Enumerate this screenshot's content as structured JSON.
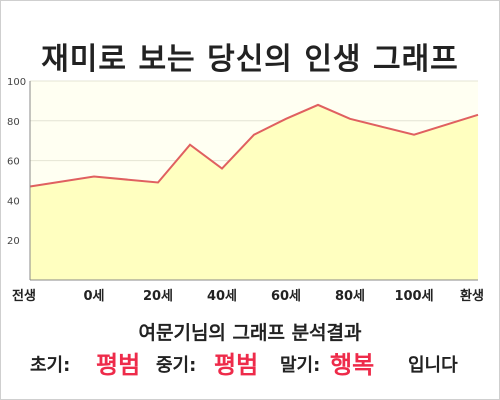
{
  "title": "재미로 보는 당신의 인생 그래프",
  "chart_data": {
    "type": "area",
    "title": "재미로 보는 당신의 인생 그래프",
    "xlabel": "",
    "ylabel": "",
    "ylim": [
      0,
      100
    ],
    "yticks": [
      20,
      40,
      60,
      80,
      100
    ],
    "xticks": [
      "전생",
      "0세",
      "20세",
      "40세",
      "60세",
      "80세",
      "100세",
      "환생"
    ],
    "grid": true,
    "legend": "none",
    "line_color": "#e06060",
    "fill_color": "#ffffc0",
    "plot_bg": "#fffff2",
    "series": [
      {
        "x": [
          -20,
          0,
          20,
          30,
          40,
          50,
          60,
          70,
          80,
          90,
          100,
          120
        ],
        "values": [
          47,
          52,
          49,
          68,
          56,
          73,
          81,
          88,
          81,
          77,
          73,
          83
        ]
      }
    ]
  },
  "result": {
    "caption": "여문기님의 그래프 분석결과",
    "early_label": "초기:",
    "early_value": "평범",
    "middle_label": "중기:",
    "middle_value": "평범",
    "late_label": "말기:",
    "late_value": "행복",
    "suffix": "입니다"
  }
}
